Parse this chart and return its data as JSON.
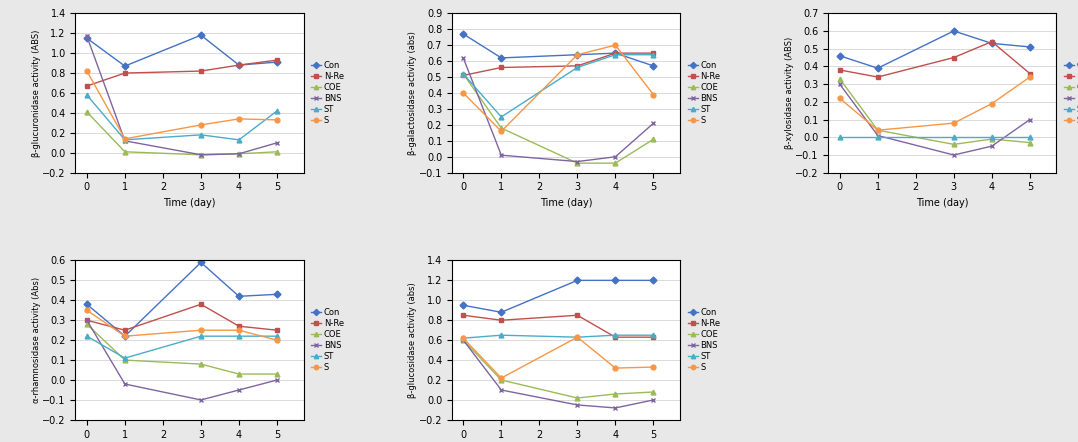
{
  "x": [
    0,
    1,
    3,
    4,
    5
  ],
  "series_names": [
    "Con",
    "N-Re",
    "COE",
    "BNS",
    "ST",
    "S"
  ],
  "colors": [
    "#4472c4",
    "#c0504d",
    "#9bbb59",
    "#8064a2",
    "#4bacc6",
    "#f79646"
  ],
  "markers": [
    "D",
    "s",
    "^",
    "x",
    "^",
    "o"
  ],
  "bg_color": "#e8e8e8",
  "chart1": {
    "ylabel": "β-glucuronidase activity (ABS)",
    "xlabel": "Time (day)",
    "ylim": [
      -0.2,
      1.4
    ],
    "yticks": [
      -0.2,
      0.0,
      0.2,
      0.4,
      0.6,
      0.8,
      1.0,
      1.2,
      1.4
    ],
    "data": {
      "Con": [
        1.15,
        0.87,
        1.18,
        0.88,
        0.91
      ],
      "N-Re": [
        0.67,
        0.8,
        0.82,
        0.88,
        0.93
      ],
      "COE": [
        0.41,
        0.01,
        -0.02,
        -0.01,
        0.01
      ],
      "BNS": [
        1.17,
        0.12,
        -0.02,
        -0.01,
        0.1
      ],
      "ST": [
        0.58,
        0.13,
        0.18,
        0.13,
        0.42
      ],
      "S": [
        0.82,
        0.14,
        0.28,
        0.34,
        0.33
      ]
    }
  },
  "chart2": {
    "ylabel": "β-galactosidase activity (abs)",
    "xlabel": "Time (day)",
    "ylim": [
      -0.1,
      0.9
    ],
    "yticks": [
      -0.1,
      0.0,
      0.1,
      0.2,
      0.3,
      0.4,
      0.5,
      0.6,
      0.7,
      0.8,
      0.9
    ],
    "data": {
      "Con": [
        0.77,
        0.62,
        0.64,
        0.65,
        0.57
      ],
      "N-Re": [
        0.51,
        0.56,
        0.57,
        0.65,
        0.65
      ],
      "COE": [
        0.52,
        0.18,
        -0.04,
        -0.04,
        0.11
      ],
      "BNS": [
        0.62,
        0.01,
        -0.03,
        0.0,
        0.21
      ],
      "ST": [
        0.52,
        0.25,
        0.56,
        0.64,
        0.64
      ],
      "S": [
        0.4,
        0.16,
        0.64,
        0.7,
        0.39
      ]
    }
  },
  "chart3": {
    "ylabel": "β-xylosidase activity (ABS)",
    "xlabel": "Time (day)",
    "ylim": [
      -0.2,
      0.7
    ],
    "yticks": [
      -0.2,
      -0.1,
      0.0,
      0.1,
      0.2,
      0.3,
      0.4,
      0.5,
      0.6,
      0.7
    ],
    "data": {
      "Con": [
        0.46,
        0.39,
        0.6,
        0.53,
        0.51
      ],
      "N-Re": [
        0.38,
        0.34,
        0.45,
        0.54,
        0.36
      ],
      "COE": [
        0.33,
        0.04,
        -0.04,
        -0.01,
        -0.03
      ],
      "BNS": [
        0.3,
        0.01,
        -0.1,
        -0.05,
        0.1
      ],
      "ST": [
        0.0,
        0.0,
        0.0,
        0.0,
        0.0
      ],
      "S": [
        0.22,
        0.04,
        0.08,
        0.19,
        0.34
      ]
    }
  },
  "chart4": {
    "ylabel": "α-rhamnosidase activity (Abs)",
    "xlabel": "Time (day)",
    "ylim": [
      -0.2,
      0.6
    ],
    "yticks": [
      -0.2,
      -0.1,
      0.0,
      0.1,
      0.2,
      0.3,
      0.4,
      0.5,
      0.6
    ],
    "data": {
      "Con": [
        0.38,
        0.22,
        0.59,
        0.42,
        0.43
      ],
      "N-Re": [
        0.3,
        0.25,
        0.38,
        0.27,
        0.25
      ],
      "COE": [
        0.28,
        0.1,
        0.08,
        0.03,
        0.03
      ],
      "BNS": [
        0.3,
        -0.02,
        -0.1,
        -0.05,
        0.0
      ],
      "ST": [
        0.22,
        0.11,
        0.22,
        0.22,
        0.22
      ],
      "S": [
        0.35,
        0.22,
        0.25,
        0.25,
        0.2
      ]
    }
  },
  "chart5": {
    "ylabel": "β-glucosidase activity (abs)",
    "xlabel": "Time (Day)",
    "ylim": [
      -0.2,
      1.4
    ],
    "yticks": [
      -0.2,
      0.0,
      0.2,
      0.4,
      0.6,
      0.8,
      1.0,
      1.2,
      1.4
    ],
    "data": {
      "Con": [
        0.95,
        0.88,
        1.2,
        1.2,
        1.2
      ],
      "N-Re": [
        0.85,
        0.8,
        0.85,
        0.63,
        0.63
      ],
      "COE": [
        0.6,
        0.2,
        0.02,
        0.06,
        0.08
      ],
      "BNS": [
        0.6,
        0.1,
        -0.05,
        -0.08,
        0.0
      ],
      "ST": [
        0.62,
        0.65,
        0.63,
        0.65,
        0.65
      ],
      "S": [
        0.62,
        0.22,
        0.63,
        0.32,
        0.33
      ]
    }
  }
}
